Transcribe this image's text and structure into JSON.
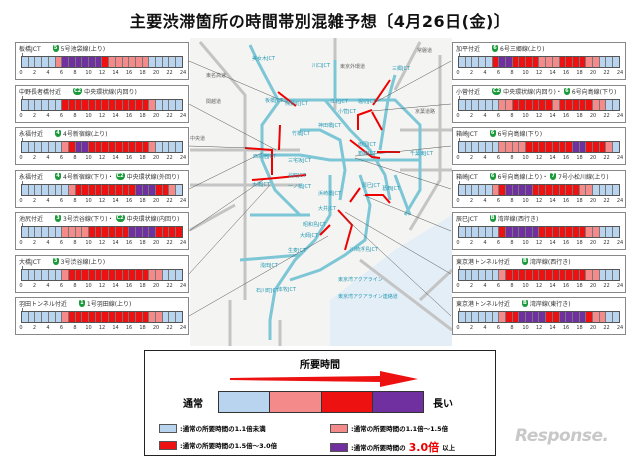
{
  "title": "主要渋滞箇所の時間帯別混雑予想〔4月26日(金)〕",
  "colors": {
    "level0": "#b8d4ee",
    "level1": "#f48a8a",
    "level2": "#ee1111",
    "level3": "#7030a0"
  },
  "hour_ticks": [
    "0",
    "2",
    "4",
    "6",
    "8",
    "10",
    "12",
    "14",
    "16",
    "18",
    "20",
    "22",
    "24"
  ],
  "left_panels": [
    {
      "location": "板橋JCT",
      "routes": [
        {
          "badge": "5",
          "name": "5号池袋線(上り)"
        }
      ],
      "levels": [
        0,
        0,
        0,
        0,
        0,
        1,
        3,
        3,
        3,
        3,
        3,
        3,
        2,
        1,
        1,
        1,
        1,
        1,
        1,
        0,
        0,
        0,
        0,
        0
      ]
    },
    {
      "location": "中野長者橋付近",
      "routes": [
        {
          "badge": "C2",
          "name": "中央環状線(内回り)"
        }
      ],
      "levels": [
        0,
        0,
        0,
        0,
        0,
        0,
        2,
        2,
        2,
        2,
        2,
        2,
        2,
        2,
        2,
        2,
        2,
        2,
        2,
        1,
        0,
        0,
        0,
        0
      ]
    },
    {
      "location": "永福付近",
      "routes": [
        {
          "badge": "4",
          "name": "4号新宿線(上り)"
        }
      ],
      "levels": [
        0,
        0,
        0,
        0,
        0,
        0,
        1,
        2,
        3,
        3,
        2,
        2,
        2,
        2,
        2,
        2,
        2,
        2,
        2,
        1,
        0,
        0,
        0,
        0
      ]
    },
    {
      "location": "永福付近",
      "routes": [
        {
          "badge": "4",
          "name": "4号新宿線(下り)・"
        },
        {
          "badge": "C2",
          "name": "中央環状線(外回り)"
        }
      ],
      "levels": [
        0,
        0,
        0,
        0,
        0,
        0,
        0,
        1,
        2,
        2,
        2,
        2,
        2,
        2,
        2,
        2,
        2,
        3,
        3,
        3,
        2,
        2,
        1,
        0
      ]
    },
    {
      "location": "池尻付近",
      "routes": [
        {
          "badge": "3",
          "name": "3号渋谷線(下り)・"
        },
        {
          "badge": "C2",
          "name": "中央環状線(内回り)"
        }
      ],
      "levels": [
        0,
        0,
        0,
        0,
        0,
        0,
        1,
        1,
        1,
        1,
        2,
        2,
        2,
        2,
        2,
        2,
        3,
        3,
        3,
        3,
        2,
        2,
        2,
        2
      ]
    },
    {
      "location": "大橋JCT",
      "routes": [
        {
          "badge": "3",
          "name": "3号渋谷線(上り)"
        }
      ],
      "levels": [
        0,
        0,
        0,
        0,
        0,
        0,
        1,
        2,
        2,
        2,
        2,
        2,
        2,
        2,
        2,
        2,
        2,
        2,
        2,
        1,
        1,
        0,
        0,
        0
      ]
    },
    {
      "location": "羽田トンネル付近",
      "routes": [
        {
          "badge": "1",
          "name": "1号羽田線(上り)"
        }
      ],
      "levels": [
        0,
        0,
        0,
        0,
        0,
        0,
        1,
        2,
        2,
        2,
        2,
        2,
        2,
        2,
        2,
        2,
        2,
        2,
        2,
        1,
        1,
        0,
        0,
        0
      ]
    }
  ],
  "right_panels": [
    {
      "location": "加平付近",
      "routes": [
        {
          "badge": "6",
          "name": "6号三郷線(上り)"
        }
      ],
      "levels": [
        0,
        0,
        0,
        0,
        0,
        2,
        3,
        3,
        2,
        2,
        2,
        2,
        1,
        1,
        1,
        2,
        2,
        2,
        2,
        1,
        1,
        0,
        0,
        0
      ]
    },
    {
      "location": "小菅付近",
      "routes": [
        {
          "badge": "C2",
          "name": "中央環状線(内回り)・"
        },
        {
          "badge": "6",
          "name": "6号向島線(下り)"
        }
      ],
      "levels": [
        0,
        0,
        0,
        0,
        0,
        0,
        1,
        1,
        2,
        2,
        2,
        2,
        2,
        2,
        1,
        2,
        2,
        2,
        2,
        2,
        1,
        1,
        0,
        0
      ]
    },
    {
      "location": "箱崎JCT",
      "routes": [
        {
          "badge": "6",
          "name": "6号向島線(下り)"
        }
      ],
      "levels": [
        0,
        0,
        0,
        0,
        0,
        0,
        1,
        1,
        1,
        1,
        2,
        2,
        2,
        2,
        2,
        2,
        2,
        3,
        3,
        2,
        2,
        2,
        1,
        0
      ]
    },
    {
      "location": "箱崎JCT",
      "routes": [
        {
          "badge": "6",
          "name": "6号向島線(上り)・"
        },
        {
          "badge": "7",
          "name": "7号小松川線(上り)"
        }
      ],
      "levels": [
        0,
        0,
        0,
        0,
        0,
        1,
        2,
        3,
        3,
        3,
        3,
        2,
        2,
        2,
        2,
        2,
        2,
        2,
        1,
        1,
        0,
        0,
        0,
        0
      ]
    },
    {
      "location": "辰巳JCT",
      "routes": [
        {
          "badge": "B",
          "name": "湾岸線(西行き)"
        }
      ],
      "levels": [
        0,
        0,
        0,
        0,
        0,
        0,
        2,
        3,
        3,
        3,
        3,
        3,
        2,
        2,
        2,
        2,
        2,
        2,
        2,
        1,
        1,
        0,
        0,
        0
      ]
    },
    {
      "location": "東京港トンネル付近",
      "routes": [
        {
          "badge": "B",
          "name": "湾岸線(西行き)"
        }
      ],
      "levels": [
        0,
        0,
        0,
        0,
        0,
        0,
        1,
        2,
        2,
        2,
        2,
        2,
        2,
        2,
        2,
        2,
        2,
        2,
        2,
        1,
        1,
        0,
        0,
        0
      ]
    },
    {
      "location": "東京港トンネル付近",
      "routes": [
        {
          "badge": "B",
          "name": "湾岸線(東行き)"
        }
      ],
      "levels": [
        0,
        0,
        0,
        0,
        0,
        0,
        1,
        2,
        2,
        3,
        3,
        3,
        3,
        2,
        2,
        3,
        3,
        3,
        3,
        2,
        1,
        1,
        0,
        0
      ]
    }
  ],
  "map_labels": [
    "美女木JCT",
    "川口JCT",
    "東京外環道",
    "三郷JCT",
    "板橋JCT",
    "熊野町JCT",
    "江北JCT",
    "小菅JCT",
    "堀切JCT",
    "竹橋JCT",
    "神田橋JCT",
    "両国JCT",
    "箱崎JCT",
    "西新宿JCT",
    "三宅坂JCT",
    "谷町JCT",
    "大橋JCT",
    "一ノ橋JCT",
    "浜崎橋JCT",
    "辰巳JCT",
    "葛西JCT",
    "昭和島JCT",
    "大師JCT",
    "生麦JCT",
    "浅田JCT",
    "石川町JCT",
    "本牧JCT",
    "川崎浮島JCT",
    "東京湾アクアライン",
    "東京湾アクアライン連絡道",
    "大井JCT",
    "東名高速",
    "中央道",
    "関越道",
    "常磐道",
    "京葉道路",
    "千葉東JCT"
  ],
  "legend": {
    "title": "所要時間",
    "from": "通常",
    "to": "長い",
    "items": [
      {
        "text": ":通常の所要時間の1.1倍未満"
      },
      {
        "text": ":通常の所要時間の1.1倍～1.5倍"
      },
      {
        "text": ":通常の所要時間の1.5倍～3.0倍"
      },
      {
        "text_before": ":通常の所要時間の",
        "emph": "3.0倍",
        "text_after": "以上"
      }
    ]
  },
  "logo": "Response."
}
